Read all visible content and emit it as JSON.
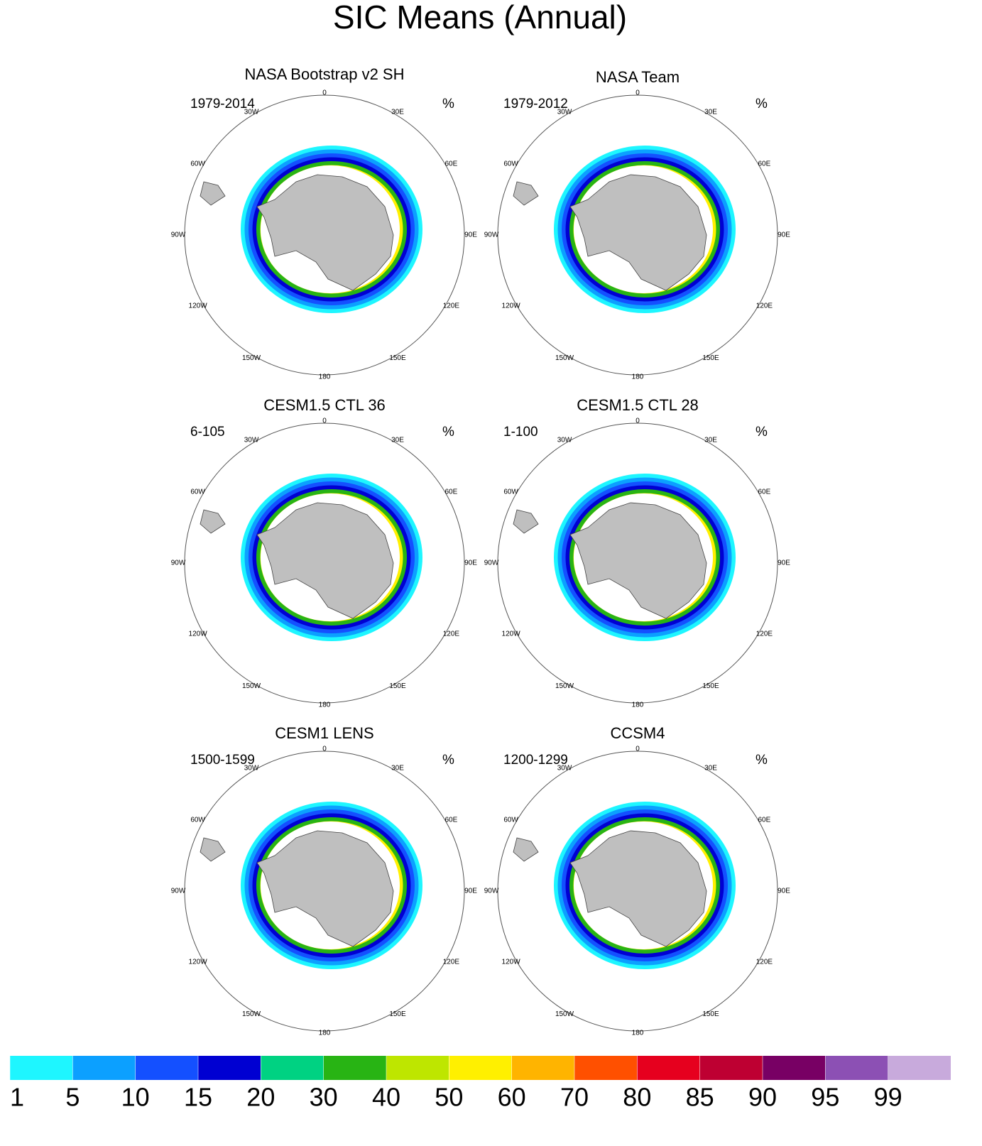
{
  "chart_data": {
    "type": "polar-map",
    "title": "SIC Means (Annual)",
    "panels": [
      {
        "title": "NASA Bootstrap v2 SH",
        "period": "1979-2014",
        "unit": "%"
      },
      {
        "title": "NASA Team",
        "period": "1979-2012",
        "unit": "%"
      },
      {
        "title": "CESM1.5 CTL 36",
        "period": "6-105",
        "unit": "%"
      },
      {
        "title": "CESM1.5 CTL 28",
        "period": "1-100",
        "unit": "%"
      },
      {
        "title": "CESM1 LENS",
        "period": "1500-1599",
        "unit": "%"
      },
      {
        "title": "CCSM4",
        "period": "1200-1299",
        "unit": "%"
      }
    ],
    "longitude_labels": [
      "0",
      "30E",
      "60E",
      "90E",
      "120E",
      "150E",
      "180",
      "150W",
      "120W",
      "90W",
      "60W",
      "30W"
    ],
    "colorbar": {
      "levels": [
        1,
        5,
        10,
        15,
        20,
        30,
        40,
        50,
        60,
        70,
        80,
        85,
        90,
        95,
        99
      ],
      "colors": [
        "#1ef6ff",
        "#0ca0ff",
        "#1450ff",
        "#0000d2",
        "#00d282",
        "#28b414",
        "#bee600",
        "#fff000",
        "#ffb400",
        "#ff5000",
        "#e6001e",
        "#be0032",
        "#780064",
        "#8c50b4",
        "#c8aadc"
      ]
    }
  }
}
